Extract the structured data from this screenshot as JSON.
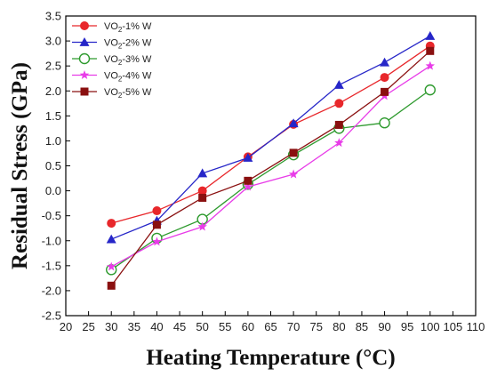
{
  "chart_data": {
    "type": "line",
    "xlabel": "Heating Temperature (°C)",
    "ylabel": "Residual Stress (GPa)",
    "xlim": [
      20,
      110
    ],
    "ylim": [
      -2.5,
      3.5
    ],
    "x_ticks": [
      20,
      25,
      30,
      35,
      40,
      45,
      50,
      55,
      60,
      65,
      70,
      75,
      80,
      85,
      90,
      95,
      100,
      105,
      110
    ],
    "x_tick_labels": [
      "20",
      "25",
      "30",
      "35",
      "40",
      "45",
      "50",
      "55",
      "60",
      "65",
      "70",
      "75",
      "80",
      "85",
      "90",
      "95",
      "100",
      "105",
      "110"
    ],
    "y_ticks": [
      -2.5,
      -2.0,
      -1.5,
      -1.0,
      -0.5,
      0.0,
      0.5,
      1.0,
      1.5,
      2.0,
      2.5,
      3.0,
      3.5
    ],
    "y_tick_labels": [
      "-2.5",
      "-2.0",
      "-1.5",
      "-1.0",
      "-0.5",
      "0.0",
      "0.5",
      "1.0",
      "1.5",
      "2.0",
      "2.5",
      "3.0",
      "3.5"
    ],
    "legend_position": "top-left",
    "grid": false,
    "x": [
      30,
      40,
      50,
      60,
      70,
      80,
      90,
      100
    ],
    "series": [
      {
        "name_main": "VO",
        "name_sub": "2",
        "name_rest": "-1% W",
        "color": "#e8272b",
        "marker": "filled-circle",
        "values": [
          -0.65,
          -0.4,
          0.0,
          0.68,
          1.33,
          1.75,
          2.27,
          2.9
        ]
      },
      {
        "name_main": "VO",
        "name_sub": "2",
        "name_rest": "-2% W",
        "color": "#2626c8",
        "marker": "filled-triangle",
        "values": [
          -0.97,
          -0.6,
          0.35,
          0.66,
          1.35,
          2.12,
          2.57,
          3.1
        ]
      },
      {
        "name_main": "VO",
        "name_sub": "2",
        "name_rest": "-3% W",
        "color": "#2e9a2e",
        "marker": "open-circle",
        "values": [
          -1.58,
          -0.95,
          -0.57,
          0.13,
          0.72,
          1.25,
          1.36,
          2.02
        ]
      },
      {
        "name_main": "VO",
        "name_sub": "2",
        "name_rest": "-4% W",
        "color": "#e83ce8",
        "marker": "star",
        "values": [
          -1.52,
          -1.02,
          -0.72,
          0.08,
          0.33,
          0.96,
          1.9,
          2.5
        ]
      },
      {
        "name_main": "VO",
        "name_sub": "2",
        "name_rest": "-5% W",
        "color": "#8a1010",
        "marker": "filled-square",
        "values": [
          -1.9,
          -0.68,
          -0.14,
          0.2,
          0.76,
          1.32,
          1.98,
          2.8
        ]
      }
    ]
  }
}
